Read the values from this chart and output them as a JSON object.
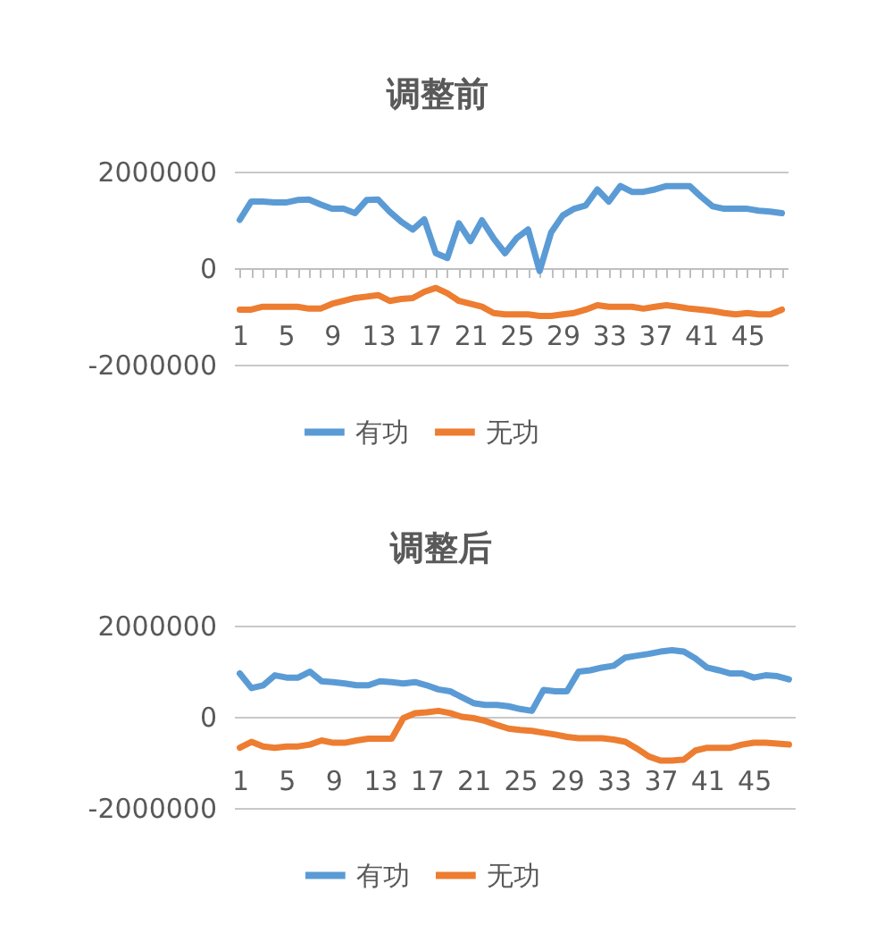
{
  "chart_data": [
    {
      "type": "line",
      "title": "调整前",
      "categories": [
        "1",
        null,
        null,
        null,
        "5",
        null,
        null,
        null,
        "9",
        null,
        null,
        null,
        "13",
        null,
        null,
        null,
        "17",
        null,
        null,
        null,
        "21",
        null,
        null,
        null,
        "25",
        null,
        null,
        null,
        "29",
        null,
        null,
        null,
        "33",
        null,
        null,
        null,
        "37",
        null,
        null,
        null,
        "41",
        null,
        null,
        null,
        "45",
        null,
        null,
        null
      ],
      "series": [
        {
          "name": "有功",
          "color": "#5b9bd5",
          "values": [
            1000000,
            1380000,
            1380000,
            1360000,
            1360000,
            1410000,
            1420000,
            1320000,
            1230000,
            1230000,
            1140000,
            1410000,
            1420000,
            1170000,
            960000,
            800000,
            1010000,
            310000,
            210000,
            930000,
            560000,
            990000,
            620000,
            310000,
            620000,
            800000,
            -60000,
            740000,
            1090000,
            1230000,
            1300000,
            1630000,
            1380000,
            1700000,
            1580000,
            1580000,
            1630000,
            1700000,
            1700000,
            1700000,
            1480000,
            1280000,
            1230000,
            1230000,
            1230000,
            1190000,
            1170000,
            1140000
          ]
        },
        {
          "name": "无功",
          "color": "#ed7d31",
          "values": [
            -860000,
            -860000,
            -800000,
            -800000,
            -800000,
            -800000,
            -840000,
            -840000,
            -740000,
            -680000,
            -620000,
            -590000,
            -560000,
            -680000,
            -640000,
            -620000,
            -490000,
            -410000,
            -520000,
            -680000,
            -740000,
            -800000,
            -930000,
            -960000,
            -960000,
            -960000,
            -990000,
            -990000,
            -960000,
            -930000,
            -860000,
            -770000,
            -800000,
            -800000,
            -800000,
            -840000,
            -800000,
            -770000,
            -800000,
            -840000,
            -860000,
            -890000,
            -930000,
            -960000,
            -930000,
            -960000,
            -960000,
            -860000
          ]
        }
      ],
      "ylim": [
        -2000000,
        2000000
      ],
      "yticks": [
        -2000000,
        0,
        2000000
      ],
      "grid": "y",
      "legend": "bottom"
    },
    {
      "type": "line",
      "title": "调整后",
      "categories": [
        "1",
        null,
        null,
        null,
        "5",
        null,
        null,
        null,
        "9",
        null,
        null,
        null,
        "13",
        null,
        null,
        null,
        "17",
        null,
        null,
        null,
        "21",
        null,
        null,
        null,
        "25",
        null,
        null,
        null,
        "29",
        null,
        null,
        null,
        "33",
        null,
        null,
        null,
        "37",
        null,
        null,
        null,
        "41",
        null,
        null,
        null,
        "45",
        null,
        null,
        null
      ],
      "series": [
        {
          "name": "有功",
          "color": "#5b9bd5",
          "values": [
            950000,
            630000,
            690000,
            910000,
            860000,
            860000,
            990000,
            780000,
            760000,
            730000,
            690000,
            690000,
            780000,
            760000,
            730000,
            760000,
            690000,
            600000,
            560000,
            430000,
            300000,
            260000,
            260000,
            230000,
            170000,
            130000,
            590000,
            560000,
            560000,
            990000,
            1020000,
            1080000,
            1120000,
            1300000,
            1340000,
            1380000,
            1430000,
            1460000,
            1430000,
            1280000,
            1080000,
            1020000,
            950000,
            950000,
            860000,
            910000,
            890000,
            820000
          ]
        },
        {
          "name": "无功",
          "color": "#ed7d31",
          "values": [
            -680000,
            -550000,
            -650000,
            -680000,
            -650000,
            -650000,
            -610000,
            -520000,
            -570000,
            -570000,
            -520000,
            -480000,
            -480000,
            -480000,
            -30000,
            80000,
            100000,
            130000,
            80000,
            0,
            -30000,
            -90000,
            -180000,
            -260000,
            -290000,
            -310000,
            -350000,
            -390000,
            -440000,
            -470000,
            -470000,
            -470000,
            -500000,
            -550000,
            -700000,
            -870000,
            -960000,
            -960000,
            -940000,
            -740000,
            -680000,
            -680000,
            -680000,
            -610000,
            -570000,
            -570000,
            -590000,
            -610000
          ]
        }
      ],
      "ylim": [
        -2000000,
        2000000
      ],
      "yticks": [
        -2000000,
        0,
        2000000
      ],
      "grid": "y",
      "legend": "bottom"
    }
  ]
}
